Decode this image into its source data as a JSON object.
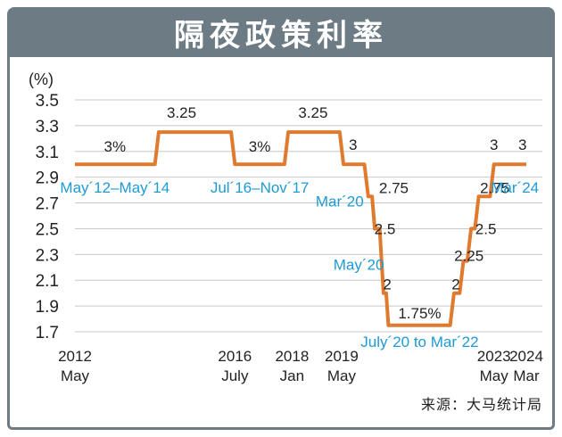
{
  "title": "隔夜政策利率",
  "source": "来源：大马统计局",
  "colors": {
    "header_bg": "#6d7b84",
    "line": "#e07a2e",
    "date_label": "#1e9ad6",
    "value_label": "#222222",
    "grid": "#c8c8c8"
  },
  "chart_data": {
    "type": "line",
    "unit_label": "(%)",
    "ylim": [
      1.7,
      3.5
    ],
    "yticks": [
      1.7,
      1.9,
      2.1,
      2.3,
      2.5,
      2.7,
      2.9,
      3.1,
      3.3,
      3.5
    ],
    "grid": true,
    "x_tick_labels": [
      {
        "x": 2012.35,
        "line1": "2012",
        "line2": "May"
      },
      {
        "x": 2016.55,
        "line1": "2016",
        "line2": "July"
      },
      {
        "x": 2018.05,
        "line1": "2018",
        "line2": "Jan"
      },
      {
        "x": 2019.35,
        "line1": "2019",
        "line2": "May"
      },
      {
        "x": 2023.35,
        "line1": "2023",
        "line2": "May"
      },
      {
        "x": 2024.2,
        "line1": "2024",
        "line2": "Mar"
      }
    ],
    "xlim": [
      2012.35,
      2024.2
    ],
    "series": [
      {
        "points": [
          [
            2012.35,
            3.0
          ],
          [
            2014.45,
            3.0
          ],
          [
            2014.55,
            3.25
          ],
          [
            2016.45,
            3.25
          ],
          [
            2016.55,
            3.0
          ],
          [
            2017.85,
            3.0
          ],
          [
            2017.95,
            3.25
          ],
          [
            2019.3,
            3.25
          ],
          [
            2019.4,
            3.0
          ],
          [
            2019.95,
            3.0
          ],
          [
            2020.05,
            2.75
          ],
          [
            2020.15,
            2.75
          ],
          [
            2020.22,
            2.5
          ],
          [
            2020.35,
            2.5
          ],
          [
            2020.45,
            2.0
          ],
          [
            2020.52,
            2.0
          ],
          [
            2020.58,
            1.75
          ],
          [
            2022.2,
            1.75
          ],
          [
            2022.3,
            2.0
          ],
          [
            2022.45,
            2.0
          ],
          [
            2022.55,
            2.25
          ],
          [
            2022.65,
            2.25
          ],
          [
            2022.75,
            2.5
          ],
          [
            2022.85,
            2.5
          ],
          [
            2022.95,
            2.75
          ],
          [
            2023.25,
            2.75
          ],
          [
            2023.35,
            3.0
          ],
          [
            2024.2,
            3.0
          ]
        ]
      }
    ],
    "value_labels": [
      {
        "text": "3%",
        "x": 2013.4,
        "y": 3.0
      },
      {
        "text": "3.25",
        "x": 2015.15,
        "y": 3.25
      },
      {
        "text": "3%",
        "x": 2017.2,
        "y": 3.0
      },
      {
        "text": "3.25",
        "x": 2018.6,
        "y": 3.25
      },
      {
        "text": "3",
        "x": 2019.65,
        "y": 3.0
      },
      {
        "text": "2.75",
        "x": 2020.3,
        "y": 2.75
      },
      {
        "text": "2.5",
        "x": 2020.3,
        "y": 2.5
      },
      {
        "text": "2",
        "x": 2020.55,
        "y": 2.0
      },
      {
        "text": "1.75%",
        "x": 2021.4,
        "y": 1.75
      },
      {
        "text": "2",
        "x": 2022.35,
        "y": 2.0
      },
      {
        "text": "2.25",
        "x": 2022.6,
        "y": 2.25
      },
      {
        "text": "2.5",
        "x": 2022.95,
        "y": 2.5
      },
      {
        "text": "2.75",
        "x": 2022.95,
        "y": 2.75
      },
      {
        "text": "3",
        "x": 2023.35,
        "y": 3.0
      },
      {
        "text": "3",
        "x": 2024.1,
        "y": 3.0
      }
    ],
    "date_labels": [
      {
        "text": "May´12–May´14",
        "x": 2013.4,
        "y": 2.92
      },
      {
        "text": "Jul´16–Nov´17",
        "x": 2017.2,
        "y": 2.92
      },
      {
        "text": "Mar´20",
        "x": 2019.3,
        "y": 2.81
      },
      {
        "text": "May´20",
        "x": 2019.8,
        "y": 2.32
      },
      {
        "text": "July´20 to Mar´22",
        "x": 2021.4,
        "y": 1.72
      },
      {
        "text": "Mar´24",
        "x": 2023.9,
        "y": 2.92
      }
    ]
  }
}
